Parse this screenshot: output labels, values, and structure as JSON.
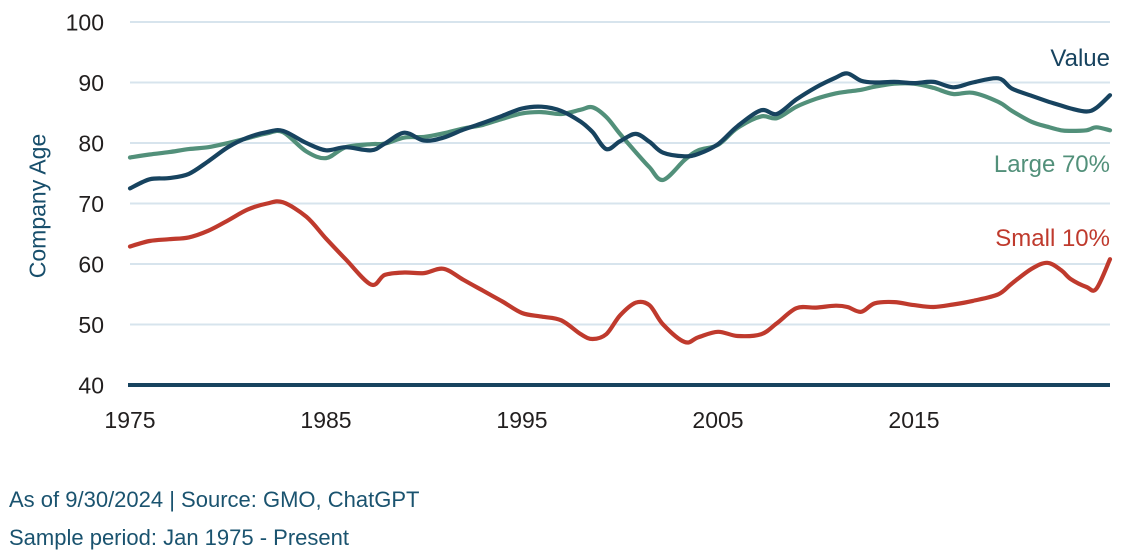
{
  "chart_data": {
    "type": "line",
    "title": "",
    "xlabel": "",
    "ylabel": "Company Age",
    "ylim": [
      40,
      100
    ],
    "xlim": [
      1975,
      2025
    ],
    "y_ticks": [
      40,
      50,
      60,
      70,
      80,
      90,
      100
    ],
    "x_ticks": [
      1975,
      1985,
      1995,
      2005,
      2015
    ],
    "grid": "horizontal light-blue gridlines, navy baseline at y=40",
    "legend_position": "inline labels at right end of lines",
    "x": [
      1975,
      1976,
      1977,
      1978,
      1979,
      1980,
      1981,
      1982,
      1982.8,
      1984,
      1985,
      1986,
      1987.3,
      1988,
      1989,
      1990,
      1991,
      1992,
      1993,
      1994,
      1995,
      1996,
      1997,
      1998,
      1998.6,
      1999.3,
      2000,
      2000.8,
      2001.5,
      2002.2,
      2003.3,
      2004,
      2005,
      2006,
      2007.2,
      2008,
      2009,
      2010,
      2011,
      2011.6,
      2012.3,
      2013,
      2014,
      2015,
      2016,
      2017,
      2018,
      2019.3,
      2020,
      2021,
      2021.8,
      2022.5,
      2023,
      2023.8,
      2024.3,
      2025
    ],
    "series": [
      {
        "name": "Value",
        "color": "#17435f",
        "values": [
          72.5,
          74.0,
          74.2,
          74.9,
          77.0,
          79.3,
          80.9,
          81.8,
          82.0,
          80.0,
          78.8,
          79.3,
          78.8,
          79.9,
          81.7,
          80.4,
          80.9,
          82.2,
          83.3,
          84.5,
          85.7,
          86.0,
          85.3,
          83.5,
          81.8,
          79.0,
          80.3,
          81.5,
          80.2,
          78.4,
          77.8,
          78.2,
          79.8,
          82.8,
          85.4,
          84.8,
          87.2,
          89.2,
          90.8,
          91.5,
          90.3,
          90.0,
          90.1,
          89.9,
          90.1,
          89.2,
          90.0,
          90.7,
          89.0,
          87.8,
          86.9,
          86.2,
          85.7,
          85.2,
          85.8,
          87.9
        ]
      },
      {
        "name": "Large 70%",
        "color": "#52907a",
        "values": [
          77.6,
          78.1,
          78.5,
          79.0,
          79.3,
          80.0,
          80.8,
          81.6,
          81.8,
          78.6,
          77.5,
          79.3,
          79.8,
          79.9,
          80.9,
          81.0,
          81.6,
          82.4,
          83.0,
          84.0,
          84.9,
          85.1,
          84.8,
          85.5,
          85.9,
          84.3,
          81.5,
          78.5,
          76.0,
          73.9,
          77.2,
          78.8,
          79.7,
          82.5,
          84.4,
          84.1,
          86.0,
          87.3,
          88.2,
          88.5,
          88.8,
          89.3,
          89.8,
          89.8,
          89.1,
          88.1,
          88.3,
          86.8,
          85.3,
          83.5,
          82.7,
          82.1,
          82.0,
          82.1,
          82.6,
          82.1
        ]
      },
      {
        "name": "Small 10%",
        "color": "#bf3a2d",
        "values": [
          62.9,
          63.8,
          64.1,
          64.4,
          65.5,
          67.2,
          69.0,
          70.0,
          70.2,
          67.8,
          64.2,
          60.8,
          56.6,
          58.2,
          58.6,
          58.5,
          59.2,
          57.4,
          55.6,
          53.8,
          51.9,
          51.3,
          50.7,
          48.4,
          47.6,
          48.4,
          51.5,
          53.6,
          53.2,
          50.0,
          47.1,
          47.9,
          48.8,
          48.1,
          48.4,
          50.2,
          52.7,
          52.8,
          53.1,
          52.9,
          52.1,
          53.5,
          53.7,
          53.2,
          52.9,
          53.3,
          53.9,
          55.0,
          56.8,
          59.2,
          60.2,
          59.0,
          57.5,
          56.2,
          55.9,
          60.8
        ]
      }
    ]
  },
  "axes": {
    "y_title": "Company Age",
    "y_tick_labels": [
      "100",
      "90",
      "80",
      "70",
      "60",
      "50",
      "40"
    ],
    "x_tick_labels": [
      "1975",
      "1985",
      "1995",
      "2005",
      "2015"
    ]
  },
  "footer": {
    "line1": "As of 9/30/2024 | Source: GMO, ChatGPT",
    "line2": "Sample period: Jan 1975 - Present"
  },
  "colors": {
    "value_line": "#17435f",
    "large_line": "#52907a",
    "small_line": "#bf3a2d",
    "gridline": "#d7e4ed",
    "axis_baseline": "#17435f",
    "tick_text": "#221f1f",
    "caption_text": "#1a536f"
  }
}
